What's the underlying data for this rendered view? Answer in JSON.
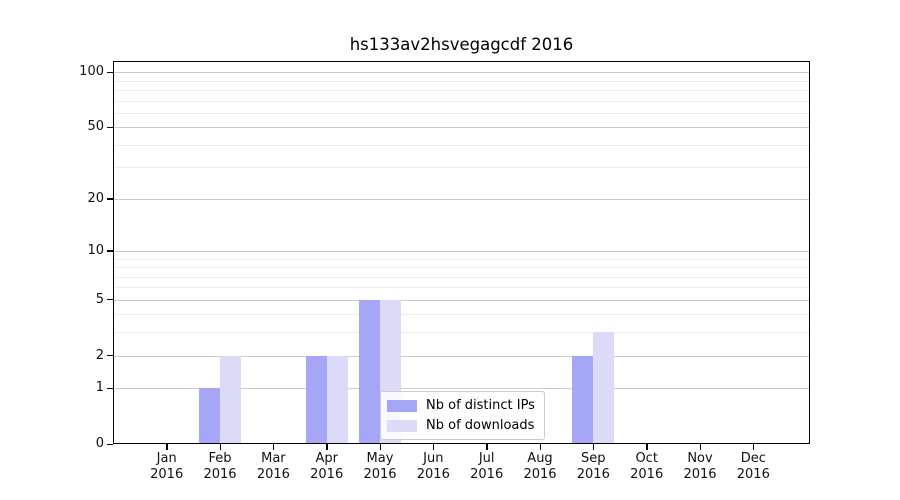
{
  "chart_data": {
    "type": "bar",
    "title": "hs133av2hsvegagcdf 2016",
    "categories": [
      "Jan",
      "Feb",
      "Mar",
      "Apr",
      "May",
      "Jun",
      "Jul",
      "Aug",
      "Sep",
      "Oct",
      "Nov",
      "Dec"
    ],
    "year_label": "2016",
    "series": [
      {
        "name": "Nb of distinct IPs",
        "color": "#a6a6f6",
        "values": [
          0,
          1,
          0,
          2,
          5,
          0,
          0,
          0,
          2,
          0,
          0,
          0
        ]
      },
      {
        "name": "Nb of downloads",
        "color": "#dbdbf8",
        "values": [
          0,
          2,
          0,
          2,
          5,
          0,
          0,
          0,
          3,
          0,
          0,
          0
        ]
      }
    ],
    "yscale": "log1p",
    "ylim": [
      0,
      115
    ],
    "y_major_ticks": [
      0,
      1,
      2,
      5,
      10,
      20,
      50,
      100
    ],
    "y_minor_gridlines": [
      3,
      4,
      6,
      7,
      8,
      9,
      30,
      40,
      60,
      70,
      80,
      90
    ],
    "grid": true,
    "legend_position": "lower center",
    "xlabel": "",
    "ylabel": ""
  }
}
